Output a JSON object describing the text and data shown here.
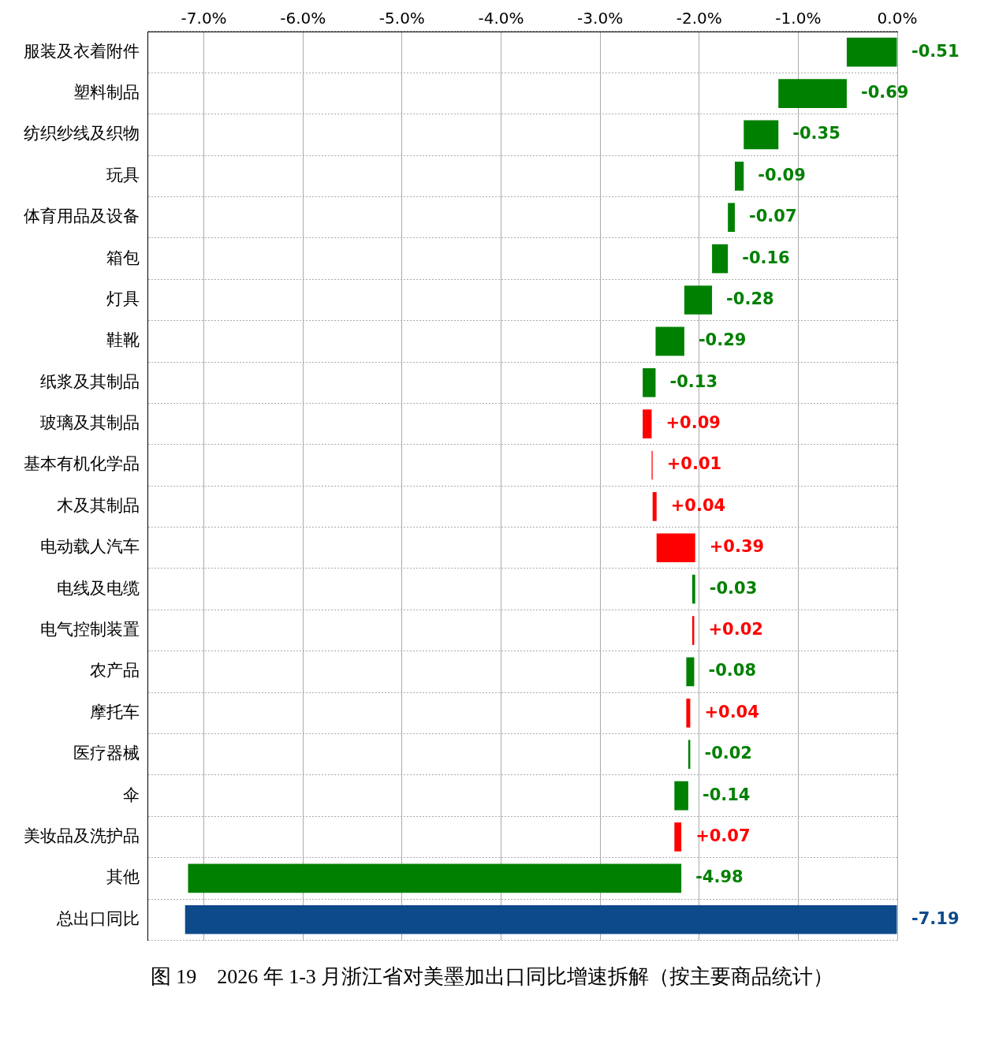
{
  "chart_data": {
    "type": "bar",
    "orientation": "horizontal",
    "title": "图 19　2026 年 1-3 月浙江省对美墨加出口同比增速拆解（按主要商品统计）",
    "categories": [
      "服装及衣着附件",
      "塑料制品",
      "纺织纱线及织物",
      "玩具",
      "体育用品及设备",
      "箱包",
      "灯具",
      "鞋靴",
      "纸浆及其制品",
      "玻璃及其制品",
      "基本有机化学品",
      "木及其制品",
      "电动载人汽车",
      "电线及电缆",
      "电气控制装置",
      "农产品",
      "摩托车",
      "医疗器械",
      "伞",
      "美妆品及洗护品",
      "其他",
      "总出口同比"
    ],
    "values": [
      -0.51,
      -0.69,
      -0.35,
      -0.09,
      -0.07,
      -0.16,
      -0.28,
      -0.29,
      -0.13,
      0.09,
      0.01,
      0.04,
      0.39,
      -0.03,
      0.02,
      -0.08,
      0.04,
      -0.02,
      -0.14,
      0.07,
      -4.98,
      -7.19
    ],
    "base": [
      0,
      -0.51,
      -1.2,
      -1.55,
      -1.64,
      -1.71,
      -1.87,
      -2.15,
      -2.44,
      -2.57,
      -2.48,
      -2.47,
      -2.43,
      -2.04,
      -2.07,
      -2.05,
      -2.13,
      -2.09,
      -2.11,
      -2.25,
      -2.18,
      0
    ],
    "colors": [
      "#008000",
      "#008000",
      "#008000",
      "#008000",
      "#008000",
      "#008000",
      "#008000",
      "#008000",
      "#008000",
      "#ff0000",
      "#ff0000",
      "#ff0000",
      "#ff0000",
      "#008000",
      "#ff0000",
      "#008000",
      "#ff0000",
      "#008000",
      "#008000",
      "#ff0000",
      "#008000",
      "#0d4a8a"
    ],
    "value_labels": [
      "-0.51",
      "-0.69",
      "-0.35",
      "-0.09",
      "-0.07",
      "-0.16",
      "-0.28",
      "-0.29",
      "-0.13",
      "+0.09",
      "+0.01",
      "+0.04",
      "+0.39",
      "-0.03",
      "+0.02",
      "-0.08",
      "+0.04",
      "-0.02",
      "-0.14",
      "+0.07",
      "-4.98",
      "-7.19"
    ],
    "xlim": [
      -7.57,
      0
    ],
    "xticks": [
      {
        "value": -7,
        "label": "-7.0%"
      },
      {
        "value": -6,
        "label": "-6.0%"
      },
      {
        "value": -5,
        "label": "-5.0%"
      },
      {
        "value": -4,
        "label": "-4.0%"
      },
      {
        "value": -3,
        "label": "-3.0%"
      },
      {
        "value": -2,
        "label": "-2.0%"
      },
      {
        "value": -1,
        "label": "-1.0%"
      },
      {
        "value": 0,
        "label": "0.0%"
      }
    ],
    "grid": true,
    "legend": false
  }
}
